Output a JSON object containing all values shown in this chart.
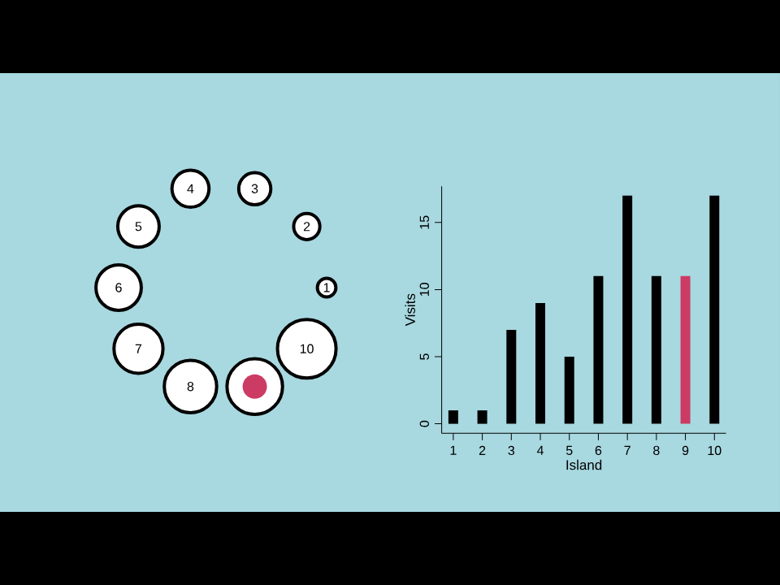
{
  "chart_data": [
    {
      "type": "other",
      "categories": [
        "1",
        "2",
        "3",
        "4",
        "5",
        "6",
        "7",
        "8",
        null,
        "10"
      ],
      "colors": [
        null,
        null,
        null,
        null,
        null,
        null,
        null,
        null,
        "#cc3b63",
        null
      ]
    },
    {
      "type": "bar",
      "x": [
        1,
        2,
        3,
        4,
        5,
        6,
        7,
        8,
        9,
        10
      ],
      "values": [
        1,
        1,
        7,
        9,
        5,
        11,
        17,
        11,
        11,
        17
      ],
      "colors": [
        "#000000",
        "#000000",
        "#000000",
        "#000000",
        "#000000",
        "#000000",
        "#000000",
        "#000000",
        "#cc3b63",
        "#000000"
      ],
      "xlabel": "Island",
      "ylabel": "Visits",
      "xlim": [
        0.6,
        10.4
      ],
      "ylim": [
        -0.7,
        17.7
      ],
      "xticks": [
        1,
        2,
        3,
        4,
        5,
        6,
        7,
        8,
        9,
        10
      ],
      "yticks": [
        0,
        5,
        10,
        15
      ]
    }
  ]
}
